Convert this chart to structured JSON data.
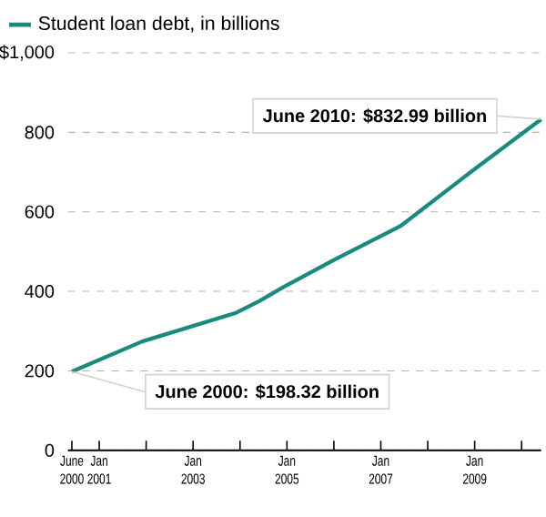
{
  "chart_data": {
    "type": "line",
    "series": [
      {
        "name": "Student loan debt, in billions",
        "color": "#1a8a7e",
        "x": [
          "2000-06",
          "2001-12",
          "2003-12",
          "2004-06",
          "2004-12",
          "2006-01",
          "2007-06",
          "2008-12",
          "2010-06"
        ],
        "values": [
          198.32,
          274,
          346,
          376,
          410,
          479,
          564,
          700,
          832.99
        ]
      }
    ],
    "xlim": [
      "2000-05",
      "2010-06"
    ],
    "xticks": [
      {
        "value": "2000-06",
        "label": "June 2000"
      },
      {
        "value": "2001-01",
        "label": "Jan 2001"
      },
      {
        "value": "2002-01",
        "label": null
      },
      {
        "value": "2003-01",
        "label": "Jan 2003"
      },
      {
        "value": "2004-01",
        "label": null
      },
      {
        "value": "2005-01",
        "label": "Jan 2005"
      },
      {
        "value": "2006-01",
        "label": null
      },
      {
        "value": "2007-01",
        "label": "Jan 2007"
      },
      {
        "value": "2008-01",
        "label": null
      },
      {
        "value": "2009-01",
        "label": "Jan 2009"
      },
      {
        "value": "2010-01",
        "label": null
      }
    ],
    "ylim": [
      0,
      1000
    ],
    "yticks": [
      0,
      200,
      400,
      600,
      800,
      {
        "value": 1000,
        "label": "$1,000"
      }
    ],
    "grid": "y",
    "legend": "top left",
    "annotations": [
      {
        "text": "June 2000: $198.32 billion",
        "x": "2000-06",
        "y": 198.32
      },
      {
        "text": "June 2010: $832.99 billion",
        "x": "2010-06",
        "y": 832.99
      }
    ]
  }
}
